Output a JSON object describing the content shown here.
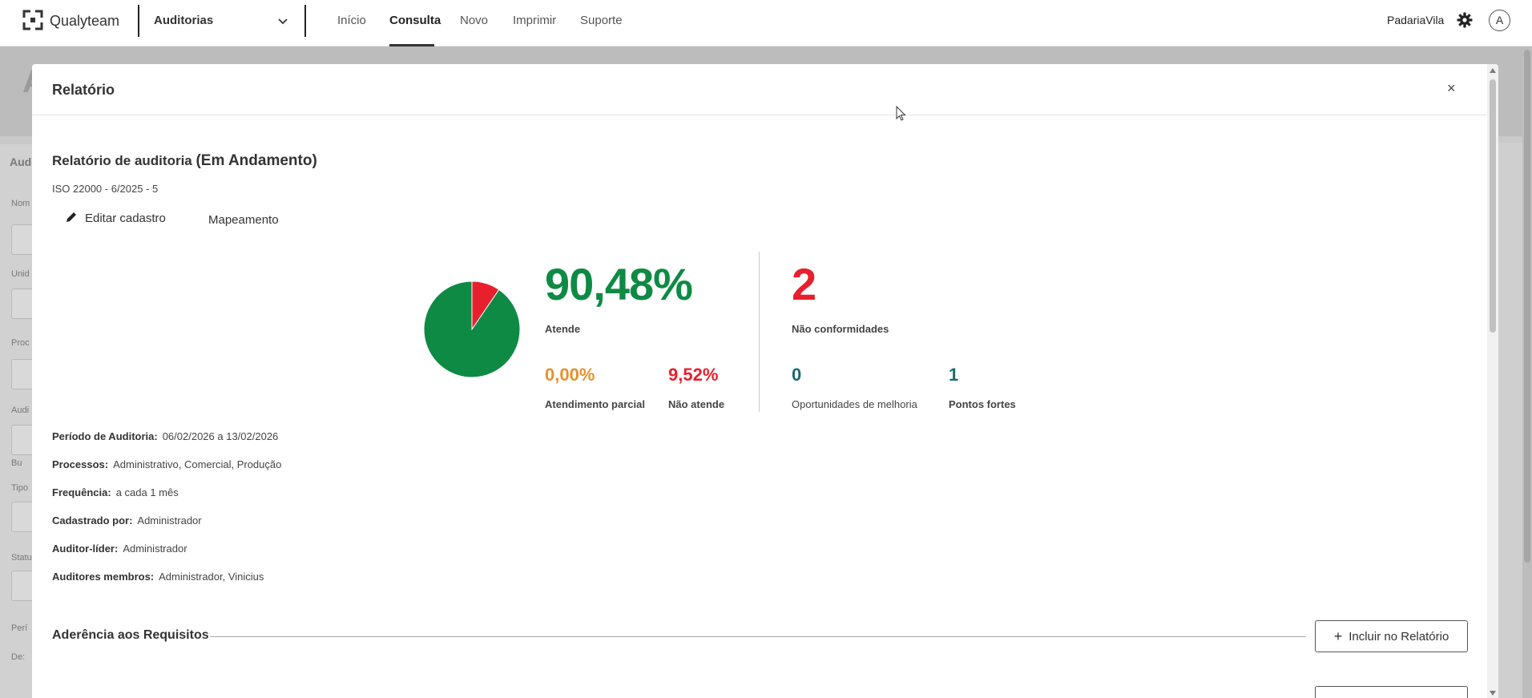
{
  "topbar": {
    "brand": "Qualyteam",
    "module": "Auditorias",
    "nav": [
      "Início",
      "Consulta",
      "Novo",
      "Imprimir",
      "Suporte"
    ],
    "active_nav": "Consulta",
    "org": "PadariaVila",
    "avatar": "A"
  },
  "modal": {
    "title": "Relatório",
    "close": "×",
    "report_title": "Relatório de auditoria",
    "report_status": "(Em Andamento)",
    "report_code": "ISO 22000 - 6/2025 - 5",
    "edit_label": "Editar cadastro",
    "map_label": "Mapeamento",
    "stats": {
      "atende_pct": "90,48%",
      "atende_label": "Atende",
      "parcial_pct": "0,00%",
      "parcial_label": "Atendimento parcial",
      "nao_atende_pct": "9,52%",
      "nao_atende_label": "Não atende",
      "nc_count": "2",
      "nc_label": "Não conformidades",
      "om_count": "0",
      "om_label": "Oportunidades de melhoria",
      "pf_count": "1",
      "pf_label": "Pontos fortes"
    },
    "info": [
      {
        "label": "Período de Auditoria:",
        "value": "06/02/2026 a 13/02/2026"
      },
      {
        "label": "Processos:",
        "value": "Administrativo, Comercial, Produção"
      },
      {
        "label": "Frequência:",
        "value": "a cada 1 mês"
      },
      {
        "label": "Cadastrado por:",
        "value": "Administrador"
      },
      {
        "label": "Auditor-líder:",
        "value": "Administrador"
      },
      {
        "label": "Auditores membros:",
        "value": "Administrador, Vinicius"
      }
    ],
    "section_title": "Aderência aos Requisitos",
    "add_button": "Incluir no Relatório"
  },
  "chart_data": {
    "type": "pie",
    "categories": [
      "Atende",
      "Atendimento parcial",
      "Não atende"
    ],
    "values": [
      90.48,
      0.0,
      9.52
    ],
    "colors": [
      "#0e8a44",
      "#e8902a",
      "#e8202d"
    ]
  },
  "colors": {
    "green": "#0e8a44",
    "orange": "#e8902a",
    "red": "#e8202d",
    "teal": "#1a6b6f"
  },
  "background_labels": [
    "Aud",
    "Nom",
    "Unid",
    "Proc",
    "Audi",
    "Bu",
    "Tipo",
    "Statu",
    "Perí",
    "De:"
  ]
}
